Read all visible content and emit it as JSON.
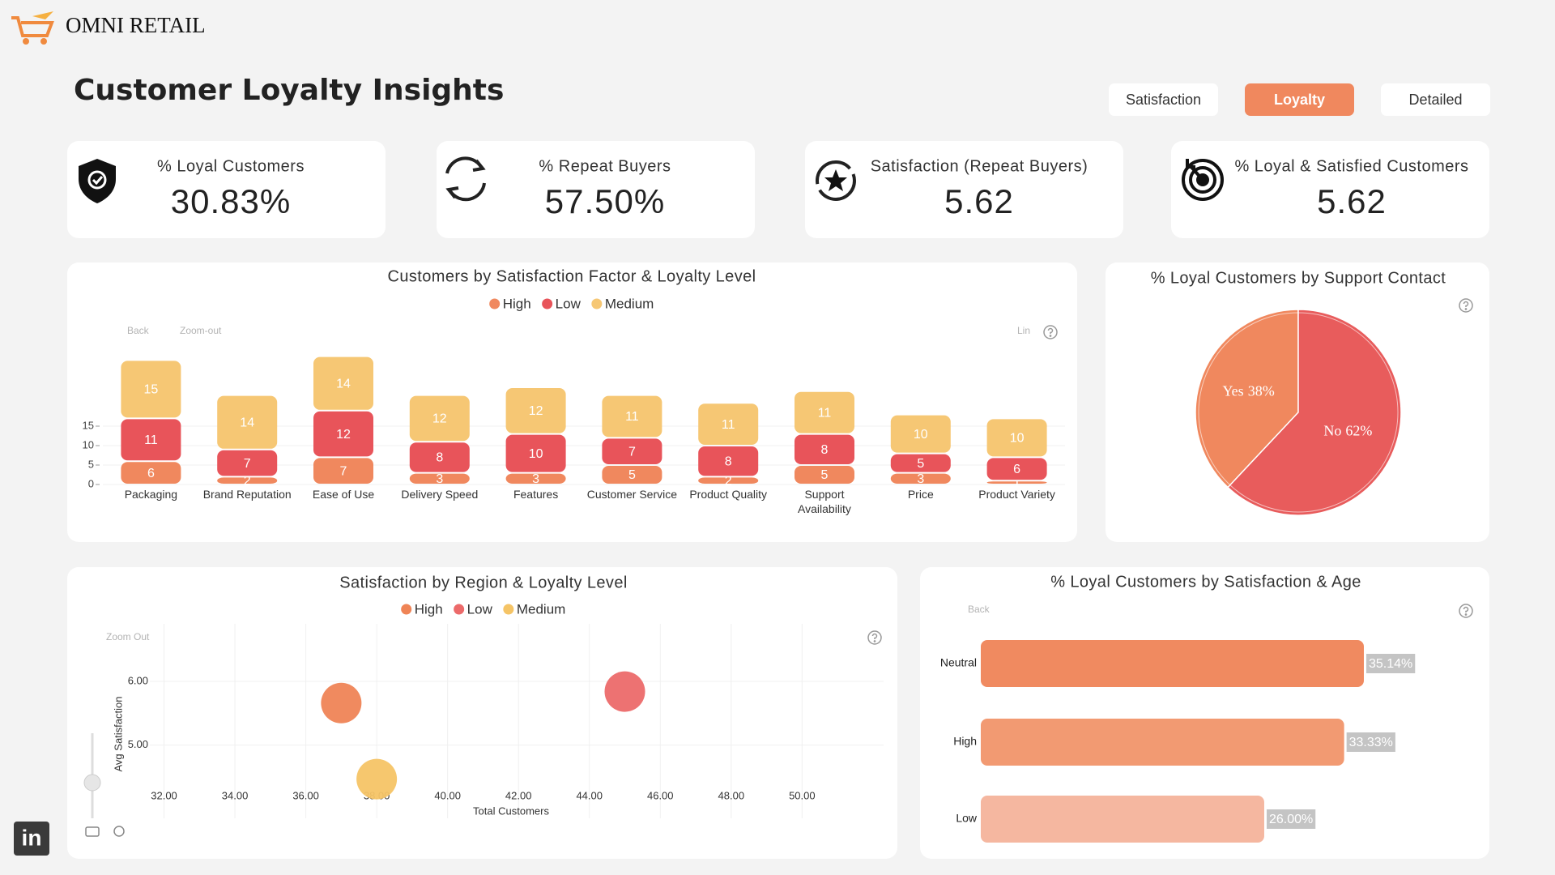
{
  "header": {
    "brand": "OMNI RETAIL",
    "title": "Customer Loyalty Insights"
  },
  "tabs": {
    "items": [
      "Satisfaction",
      "Loyalty",
      "Detailed"
    ],
    "active": 1
  },
  "kpis": [
    {
      "label": "% Loyal Customers",
      "value": "30.83%"
    },
    {
      "label": "% Repeat Buyers",
      "value": "57.50%"
    },
    {
      "label": "Satisfaction (Repeat Buyers)",
      "value": "5.62"
    },
    {
      "label": "% Loyal & Satisfied Customers",
      "value": "5.62"
    }
  ],
  "footer": {
    "badge": "in"
  },
  "chart_data": [
    {
      "type": "bar",
      "stacked": true,
      "title": "Customers by Satisfaction Factor & Loyalty Level",
      "toolbar": [
        "Back",
        "Zoom-out",
        "Lin"
      ],
      "categories": [
        "Packaging",
        "Brand Reputation",
        "Ease of Use",
        "Delivery Speed",
        "Features",
        "Customer Service",
        "Product Quality",
        "Support Availability",
        "Price",
        "Product Variety"
      ],
      "series": [
        {
          "name": "High",
          "color": "#f0885e",
          "values": [
            6,
            2,
            7,
            3,
            3,
            5,
            2,
            5,
            3,
            1
          ]
        },
        {
          "name": "Low",
          "color": "#e8545a",
          "values": [
            11,
            7,
            12,
            8,
            10,
            7,
            8,
            8,
            5,
            6
          ]
        },
        {
          "name": "Medium",
          "color": "#f6c774",
          "values": [
            15,
            14,
            14,
            12,
            12,
            11,
            11,
            11,
            10,
            10
          ]
        }
      ],
      "ylim": [
        0,
        35
      ],
      "yticks": [
        0,
        5,
        10,
        15
      ],
      "grid": true,
      "legend": "top"
    },
    {
      "type": "pie",
      "title": "% Loyal Customers by Support Contact",
      "categories": [
        "Yes",
        "No"
      ],
      "values": [
        38,
        62
      ],
      "value_labels": [
        "38%",
        "62%"
      ],
      "colors": [
        "#f0885e",
        "#e85c5c"
      ]
    },
    {
      "type": "scatter",
      "title": "Satisfaction by Region & Loyalty Level",
      "toolbar": [
        "Zoom Out"
      ],
      "xlabel": "Total Customers",
      "ylabel": "Avg Satisfaction",
      "series": [
        {
          "name": "High",
          "color": "#ef8456",
          "x": [
            37
          ],
          "values": [
            5.66
          ]
        },
        {
          "name": "Low",
          "color": "#ec6a6a",
          "x": [
            45
          ],
          "values": [
            5.84
          ]
        },
        {
          "name": "Medium",
          "color": "#f5c466",
          "x": [
            38
          ],
          "values": [
            4.47
          ]
        }
      ],
      "xlim": [
        30,
        52.3
      ],
      "xticks": [
        {
          "value": 32,
          "label": "32.00"
        },
        {
          "value": 34,
          "label": "34.00"
        },
        {
          "value": 36,
          "label": "36.00"
        },
        {
          "value": 38,
          "label": "38.00"
        },
        {
          "value": 40,
          "label": "40.00"
        },
        {
          "value": 42,
          "label": "42.00"
        },
        {
          "value": 44,
          "label": "44.00"
        },
        {
          "value": 46,
          "label": "46.00"
        },
        {
          "value": 48,
          "label": "48.00"
        },
        {
          "value": 50,
          "label": "50.00"
        }
      ],
      "ylim": [
        4.3,
        6.9
      ],
      "yticks": [
        {
          "value": 5,
          "label": "5.00"
        },
        {
          "value": 6,
          "label": "6.00"
        }
      ],
      "grid": true,
      "legend": "top"
    },
    {
      "type": "hbar",
      "title": "% Loyal Customers by Satisfaction & Age",
      "toolbar": [
        "Back"
      ],
      "categories": [
        "Neutral",
        "High",
        "Low"
      ],
      "values": [
        35.14,
        33.33,
        26
      ],
      "value_labels": [
        "35.14%",
        "33.33%",
        "26.00%"
      ],
      "colors": [
        "#f08a60",
        "#f29a72",
        "#f5b7a0"
      ]
    }
  ]
}
